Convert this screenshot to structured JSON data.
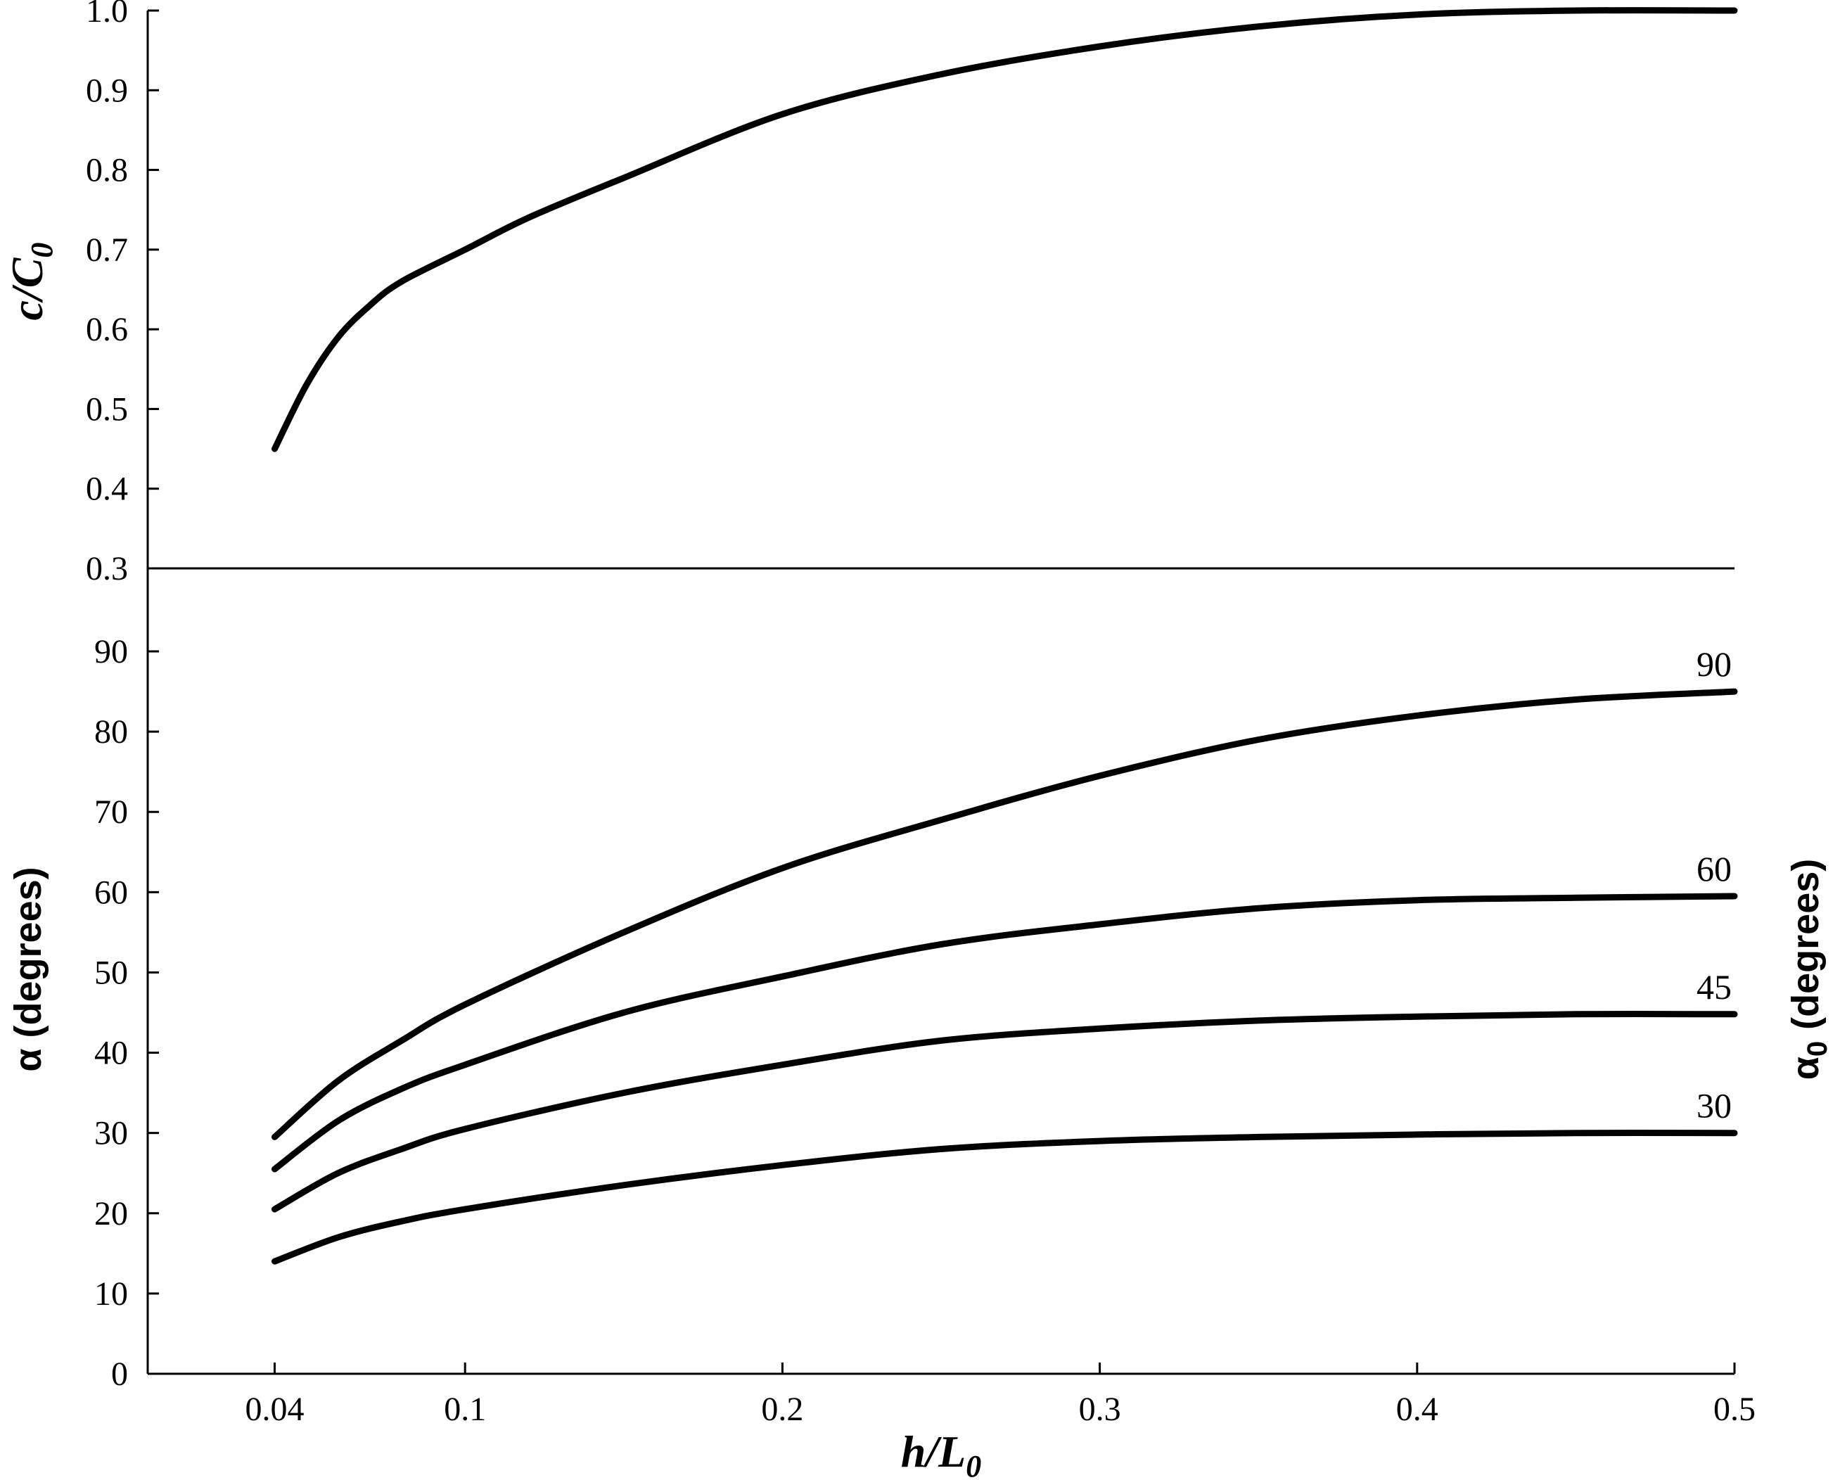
{
  "chart_data": [
    {
      "type": "line",
      "panel": "top",
      "ylabel": "c/C0",
      "ylabel_main": "c/C",
      "ylabel_sub": "0",
      "ylim": [
        0.3,
        1.0
      ],
      "yticks": [
        "0.3",
        "0.4",
        "0.5",
        "0.6",
        "0.7",
        "0.8",
        "0.9",
        "1.0"
      ],
      "grid": false,
      "series": [
        {
          "x": [
            0.04,
            0.05,
            0.06,
            0.07,
            0.08,
            0.1,
            0.12,
            0.15,
            0.2,
            0.25,
            0.3,
            0.35,
            0.4,
            0.45,
            0.5
          ],
          "y": [
            0.45,
            0.53,
            0.59,
            0.63,
            0.66,
            0.7,
            0.74,
            0.79,
            0.87,
            0.92,
            0.955,
            0.98,
            0.995,
            1.0,
            1.0
          ]
        }
      ]
    },
    {
      "type": "line",
      "panel": "bottom",
      "xlabel": "h/L0",
      "xlabel_main": "h/L",
      "xlabel_sub": "0",
      "ylabel": "α (degrees)",
      "ylabel_right": "α0 (degrees)",
      "ylabel_right_main": "α",
      "ylabel_right_sub": "0",
      "ylabel_right_rest": "(degrees)",
      "xlim": [
        0.0,
        0.5
      ],
      "xticks": [
        0.04,
        0.1,
        0.2,
        0.3,
        0.4,
        0.5
      ],
      "xtick_labels": [
        "0.04",
        "0.1",
        "0.2",
        "0.3",
        "0.4",
        "0.5"
      ],
      "ylim": [
        0,
        90
      ],
      "yticks": [
        "0",
        "10",
        "20",
        "30",
        "40",
        "50",
        "60",
        "70",
        "80",
        "90"
      ],
      "grid": false,
      "series": [
        {
          "name": "90",
          "x": [
            0.04,
            0.06,
            0.08,
            0.1,
            0.15,
            0.2,
            0.25,
            0.3,
            0.35,
            0.4,
            0.45,
            0.5
          ],
          "y": [
            29.5,
            36.5,
            41.5,
            46,
            55,
            63,
            69,
            74.5,
            79,
            82,
            84,
            85
          ]
        },
        {
          "name": "60",
          "x": [
            0.04,
            0.06,
            0.08,
            0.1,
            0.15,
            0.2,
            0.25,
            0.3,
            0.35,
            0.4,
            0.45,
            0.5
          ],
          "y": [
            25.5,
            31.5,
            35.5,
            38.5,
            45,
            49.5,
            53.5,
            56,
            58,
            59,
            59.3,
            59.5
          ]
        },
        {
          "name": "45",
          "x": [
            0.04,
            0.06,
            0.08,
            0.1,
            0.15,
            0.2,
            0.25,
            0.3,
            0.35,
            0.4,
            0.45,
            0.5
          ],
          "y": [
            20.5,
            25,
            28,
            30.5,
            35,
            38.5,
            41.5,
            43,
            44,
            44.5,
            44.8,
            44.8
          ]
        },
        {
          "name": "30",
          "x": [
            0.04,
            0.06,
            0.08,
            0.1,
            0.15,
            0.2,
            0.25,
            0.3,
            0.35,
            0.4,
            0.45,
            0.5
          ],
          "y": [
            14,
            17,
            19,
            20.5,
            23.5,
            26,
            28,
            29,
            29.5,
            29.8,
            30,
            30
          ]
        }
      ]
    }
  ]
}
